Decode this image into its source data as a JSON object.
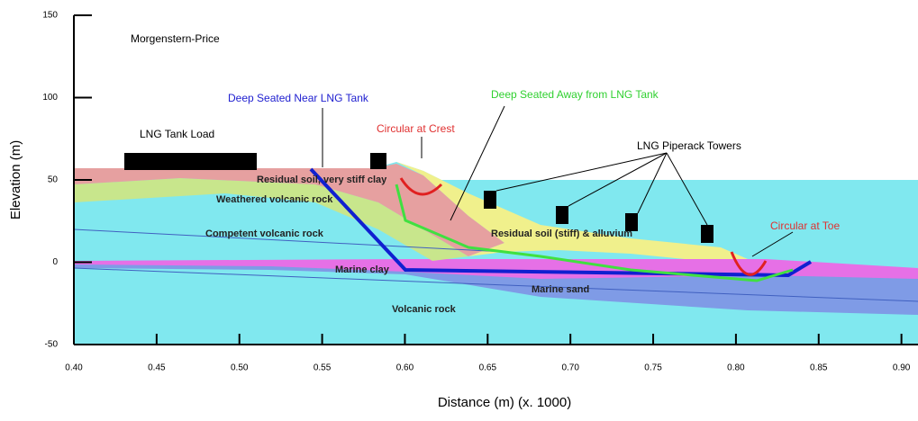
{
  "chart_data": {
    "type": "section",
    "x_label": "Distance (m) (x. 1000)",
    "y_label": "Elevation (m)",
    "method": "Morgenstern-Price",
    "xlim": [
      0.4,
      0.91
    ],
    "ylim": [
      -50,
      150
    ],
    "xticks": [
      {
        "value": 0.4,
        "label": "0.40"
      },
      0.45,
      {
        "value": 0.5,
        "label": "0.50"
      },
      0.55,
      {
        "value": 0.6,
        "label": "0.60"
      },
      0.65,
      {
        "value": 0.7,
        "label": "0.70"
      },
      0.75,
      {
        "value": 0.8,
        "label": "0.80"
      },
      0.85,
      {
        "value": 0.9,
        "label": "0.90"
      }
    ],
    "yticks": [
      -50,
      0,
      50,
      100,
      150
    ],
    "annotations": [
      "LNG Tank Load",
      "Deep Seated Near LNG Tank",
      "Circular at Crest",
      "Deep Seated Away from LNG Tank",
      "LNG Piperack Towers",
      "Circular at Toe"
    ],
    "layers": [
      "Residual soil, very stiff clay",
      "Weathered volcanic rock",
      "Competent volcanic rock",
      "Residual soil (stiff) & alluvium",
      "Marine clay",
      "Marine sand",
      "Volcanic rock"
    ]
  }
}
